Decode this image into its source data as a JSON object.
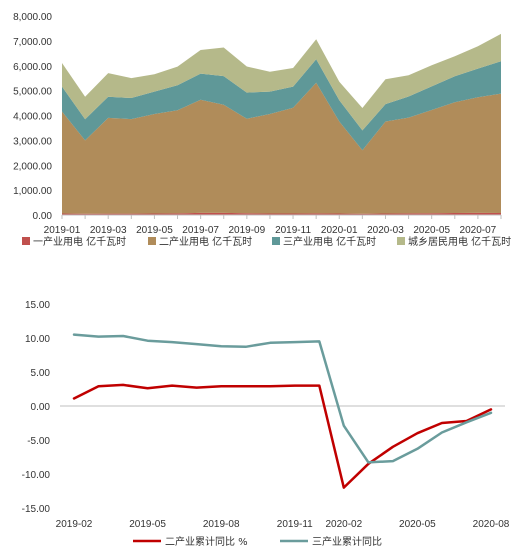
{
  "chart_data": [
    {
      "type": "area",
      "stacked": true,
      "x": [
        "2019-01",
        "2019-02",
        "2019-03",
        "2019-04",
        "2019-05",
        "2019-06",
        "2019-07",
        "2019-08",
        "2019-09",
        "2019-10",
        "2019-11",
        "2019-12",
        "2020-01",
        "2020-02",
        "2020-03",
        "2020-04",
        "2020-05",
        "2020-06",
        "2020-07",
        "2020-08"
      ],
      "x_tick_labels": [
        "2019-01",
        "2019-03",
        "2019-05",
        "2019-07",
        "2019-09",
        "2019-11",
        "2020-01",
        "2020-03",
        "2020-05",
        "2020-07"
      ],
      "y_tick_labels": [
        "0.00",
        "1,000.00",
        "2,000.00",
        "3,000.00",
        "4,000.00",
        "5,000.00",
        "6,000.00",
        "7,000.00",
        "8,000.00"
      ],
      "ylim": [
        0,
        8000
      ],
      "legend_position": "bottom",
      "series": [
        {
          "name": "一产业用电 亿千瓦时",
          "color": "#c0504d",
          "values": [
            60,
            50,
            55,
            55,
            60,
            65,
            85,
            85,
            70,
            60,
            60,
            65,
            60,
            50,
            60,
            65,
            70,
            80,
            85,
            80
          ]
        },
        {
          "name": "二产业用电 亿千瓦时",
          "color": "#b08c5a",
          "values": [
            4100,
            2950,
            3850,
            3800,
            4000,
            4150,
            4550,
            4350,
            3800,
            4000,
            4250,
            5250,
            3700,
            2550,
            3700,
            3850,
            4150,
            4450,
            4650,
            4800
          ]
        },
        {
          "name": "三产业用电 亿千瓦时",
          "color": "#5f9898",
          "values": [
            1000,
            850,
            850,
            850,
            900,
            1000,
            1050,
            1150,
            1050,
            900,
            850,
            950,
            850,
            800,
            700,
            850,
            950,
            1050,
            1150,
            1300
          ]
        },
        {
          "name": "城乡居民用电 亿千瓦时",
          "color": "#b5b98a",
          "values": [
            950,
            900,
            950,
            800,
            700,
            750,
            950,
            1150,
            1050,
            800,
            750,
            800,
            750,
            900,
            1000,
            850,
            850,
            800,
            900,
            1100
          ]
        }
      ]
    },
    {
      "type": "line",
      "x": [
        "2019-02",
        "2019-03",
        "2019-04",
        "2019-05",
        "2019-06",
        "2019-07",
        "2019-08",
        "2019-09",
        "2019-10",
        "2019-11",
        "2019-12",
        "2020-02",
        "2020-03",
        "2020-04",
        "2020-05",
        "2020-06",
        "2020-07",
        "2020-08"
      ],
      "x_tick_labels": [
        "2019-02",
        "2019-05",
        "2019-08",
        "2019-11",
        "2020-02",
        "2020-05",
        "2020-08"
      ],
      "y_tick_labels": [
        "15.00",
        "10.00",
        "5.00",
        "0.00",
        "-5.00",
        "-10.00",
        "-15.00"
      ],
      "ylim": [
        -15,
        15
      ],
      "legend_position": "bottom",
      "series": [
        {
          "name": "二产业累计同比 %",
          "color": "#c00000",
          "values": [
            1.1,
            2.9,
            3.1,
            2.6,
            3.0,
            2.7,
            2.9,
            2.9,
            2.9,
            3.0,
            3.0,
            -12.0,
            -8.5,
            -6.0,
            -4.0,
            -2.5,
            -2.2,
            -0.5
          ]
        },
        {
          "name": "三产业累计同比",
          "color": "#6a9c9c",
          "values": [
            10.5,
            10.2,
            10.3,
            9.6,
            9.4,
            9.1,
            8.8,
            8.7,
            9.3,
            9.4,
            9.5,
            -2.9,
            -8.3,
            -8.1,
            -6.3,
            -3.9,
            -2.4,
            -1.0
          ]
        }
      ]
    }
  ]
}
